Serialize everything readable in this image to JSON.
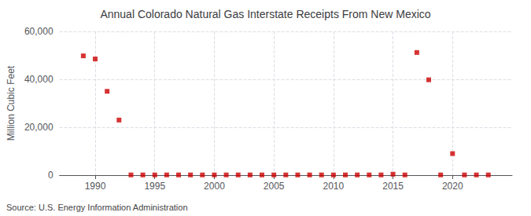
{
  "chart_data": {
    "type": "scatter",
    "title": "Annual Colorado Natural Gas Interstate Receipts From New Mexico",
    "ylabel": "Million Cubic Feet",
    "annotation": "Source: U.S. Energy Information Administration",
    "color": "#cc0000",
    "marker": "square",
    "x": [
      1989,
      1990,
      1991,
      1992,
      1993,
      1994,
      1995,
      1996,
      1997,
      1998,
      1999,
      2000,
      2001,
      2002,
      2003,
      2004,
      2005,
      2006,
      2007,
      2008,
      2009,
      2010,
      2011,
      2012,
      2013,
      2014,
      2015,
      2016,
      2017,
      2018,
      2019,
      2020,
      2021,
      2022,
      2023
    ],
    "values": [
      49800,
      48500,
      35000,
      23000,
      100,
      100,
      100,
      100,
      100,
      100,
      100,
      100,
      100,
      100,
      100,
      100,
      100,
      100,
      100,
      100,
      100,
      100,
      100,
      100,
      100,
      100,
      400,
      100,
      51200,
      39800,
      100,
      9000,
      100,
      100,
      100
    ],
    "xlim": [
      1987,
      2025
    ],
    "xticks": [
      1990,
      1995,
      2000,
      2005,
      2010,
      2015,
      2020
    ],
    "ylim": [
      0,
      60000
    ],
    "yticks": [
      0,
      {
        "value": 20000,
        "label": "20,000"
      },
      {
        "value": 40000,
        "label": "40,000"
      },
      {
        "value": 60000,
        "label": "60,000"
      }
    ],
    "grid": true
  }
}
